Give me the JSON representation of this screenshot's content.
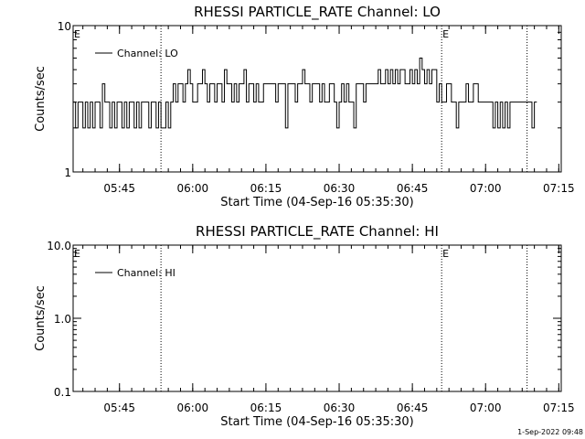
{
  "footer": {
    "timestamp": "1-Sep-2022 09:48"
  },
  "chart_data": [
    {
      "type": "line",
      "title": "RHESSI PARTICLE_RATE Channel: LO",
      "xlabel": "Start Time (04-Sep-16 05:35:30)",
      "ylabel": "Counts/sec",
      "x_unit": "minutes_after_05:35:30",
      "xlim": [
        0,
        100
      ],
      "yscale": "log",
      "ylim": [
        1,
        10
      ],
      "yticks": [
        1,
        10
      ],
      "ytick_labels": [
        "1",
        "10"
      ],
      "xticks": [
        9.5,
        24.5,
        39.5,
        54.5,
        69.5,
        84.5,
        99.5
      ],
      "xtick_labels": [
        "05:45",
        "06:00",
        "06:15",
        "06:30",
        "06:45",
        "07:00",
        "07:15"
      ],
      "event_lines": [
        18,
        75.5,
        93
      ],
      "event_markers": [
        {
          "x": 0,
          "label": "E"
        },
        {
          "x": 75.5,
          "label": "E"
        }
      ],
      "legend": {
        "position": "top-left",
        "entries": [
          "Channel: LO"
        ]
      },
      "series": [
        {
          "name": "Channel: LO",
          "x_start": 0,
          "x_step": 0.5,
          "values": [
            3,
            2,
            3,
            3,
            2,
            3,
            2,
            3,
            2,
            3,
            3,
            2,
            4,
            3,
            3,
            2,
            3,
            2,
            3,
            3,
            2,
            3,
            2,
            3,
            3,
            2,
            3,
            2,
            3,
            3,
            3,
            2,
            3,
            3,
            2,
            3,
            2,
            2,
            3,
            2,
            3,
            4,
            3,
            4,
            4,
            3,
            4,
            5,
            4,
            3,
            3,
            4,
            4,
            5,
            4,
            3,
            4,
            4,
            3,
            4,
            4,
            3,
            5,
            4,
            4,
            3,
            4,
            3,
            4,
            4,
            5,
            3,
            4,
            4,
            3,
            4,
            3,
            3,
            4,
            4,
            4,
            4,
            4,
            3,
            4,
            4,
            4,
            2,
            4,
            4,
            4,
            3,
            4,
            4,
            5,
            4,
            4,
            3,
            4,
            4,
            4,
            3,
            4,
            3,
            3,
            4,
            4,
            3,
            2,
            3,
            4,
            3,
            4,
            3,
            3,
            2,
            4,
            4,
            4,
            3,
            4,
            4,
            4,
            4,
            4,
            5,
            4,
            4,
            5,
            4,
            5,
            4,
            5,
            4,
            5,
            5,
            4,
            4,
            5,
            4,
            5,
            4,
            6,
            5,
            4,
            5,
            4,
            5,
            5,
            3,
            4,
            3,
            3,
            4,
            4,
            3,
            3,
            2,
            3,
            3,
            3,
            4,
            3,
            3,
            4,
            4,
            3,
            3,
            3,
            3,
            3,
            3,
            2,
            3,
            2,
            3,
            2,
            3,
            2,
            3,
            3,
            3,
            3,
            3,
            3,
            3,
            3,
            3,
            2,
            3
          ]
        }
      ]
    },
    {
      "type": "line",
      "title": "RHESSI PARTICLE_RATE Channel: HI",
      "xlabel": "Start Time (04-Sep-16 05:35:30)",
      "ylabel": "Counts/sec",
      "x_unit": "minutes_after_05:35:30",
      "xlim": [
        0,
        100
      ],
      "yscale": "log",
      "ylim": [
        0.1,
        10
      ],
      "yticks": [
        0.1,
        1,
        10
      ],
      "ytick_labels": [
        "0.1",
        "1.0",
        "10.0"
      ],
      "xticks": [
        9.5,
        24.5,
        39.5,
        54.5,
        69.5,
        84.5,
        99.5
      ],
      "xtick_labels": [
        "05:45",
        "06:00",
        "06:15",
        "06:30",
        "06:45",
        "07:00",
        "07:15"
      ],
      "event_lines": [
        18,
        75.5,
        93
      ],
      "event_markers": [
        {
          "x": 0,
          "label": "E"
        },
        {
          "x": 75.5,
          "label": "E"
        }
      ],
      "legend": {
        "position": "top-left",
        "entries": [
          "Channel: HI"
        ]
      },
      "series": [
        {
          "name": "Channel: HI",
          "x_start": 0,
          "x_step": 0.5,
          "values": []
        }
      ]
    }
  ]
}
